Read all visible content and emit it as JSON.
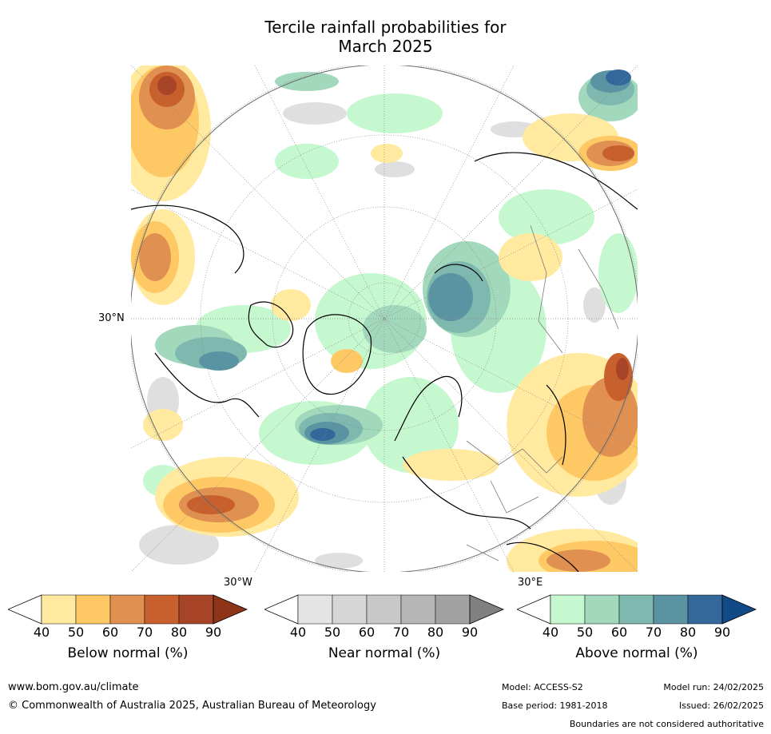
{
  "title_line1": "Tercile rainfall probabilities for",
  "title_line2": "March 2025",
  "map": {
    "projection": "north-polar-stereographic",
    "lat_label": "30°N",
    "lon_label_left": "30°W",
    "lon_label_right": "30°E"
  },
  "colorbars": [
    {
      "label": "Below normal (%)",
      "ticks": [
        "40",
        "50",
        "60",
        "70",
        "80",
        "90"
      ],
      "colors": [
        "#ffffff",
        "#ffeaa0",
        "#fec965",
        "#e09050",
        "#c8602e",
        "#a84528",
        "#8e3418"
      ]
    },
    {
      "label": "Near normal (%)",
      "ticks": [
        "40",
        "50",
        "60",
        "70",
        "80",
        "90"
      ],
      "colors": [
        "#ffffff",
        "#e4e4e4",
        "#d6d6d6",
        "#c8c8c8",
        "#b6b6b6",
        "#a2a2a2",
        "#808080"
      ]
    },
    {
      "label": "Above normal (%)",
      "ticks": [
        "40",
        "50",
        "60",
        "70",
        "80",
        "90"
      ],
      "colors": [
        "#ffffff",
        "#c6f8d0",
        "#a2d8bc",
        "#7eb8ae",
        "#5a94a2",
        "#34689a",
        "#124a88"
      ]
    }
  ],
  "footer": {
    "website": "www.bom.gov.au/climate",
    "copyright": "© Commonwealth of Australia 2025, Australian Bureau of Meteorology",
    "model": "Model: ACCESS-S2",
    "base_period": "Base period: 1981-2018",
    "model_run": "Model run: 24/02/2025",
    "issued": "Issued: 26/02/2025",
    "disclaimer": "Boundaries are not considered authoritative"
  }
}
